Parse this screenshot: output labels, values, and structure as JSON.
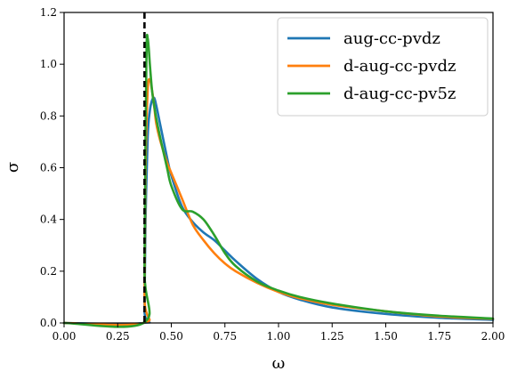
{
  "chart_data": {
    "type": "line",
    "title": "",
    "xlabel": "ω",
    "ylabel": "σ",
    "xlim": [
      0.0,
      2.0
    ],
    "ylim": [
      0.0,
      1.2
    ],
    "xticks": [
      "0.00",
      "0.25",
      "0.50",
      "0.75",
      "1.00",
      "1.25",
      "1.50",
      "1.75",
      "2.00"
    ],
    "yticks": [
      "0.0",
      "0.2",
      "0.4",
      "0.6",
      "0.8",
      "1.0",
      "1.2"
    ],
    "grid": false,
    "legend_position": "top-right",
    "threshold_line": {
      "x": 0.375,
      "style": "dashed",
      "color": "#000000"
    },
    "series": [
      {
        "name": "aug-cc-pvdz",
        "color": "#1f77b4",
        "x": [
          0.0,
          0.37,
          0.375,
          0.38,
          0.39,
          0.4,
          0.41,
          0.42,
          0.43,
          0.45,
          0.48,
          0.5,
          0.55,
          0.6,
          0.65,
          0.7,
          0.75,
          0.8,
          0.9,
          1.0,
          1.1,
          1.25,
          1.5,
          1.75,
          2.0
        ],
        "y": [
          0.0,
          0.0,
          0.05,
          0.4,
          0.72,
          0.82,
          0.86,
          0.87,
          0.84,
          0.76,
          0.64,
          0.57,
          0.45,
          0.39,
          0.35,
          0.32,
          0.28,
          0.24,
          0.17,
          0.12,
          0.09,
          0.06,
          0.035,
          0.02,
          0.012
        ]
      },
      {
        "name": "d-aug-cc-pvdz",
        "color": "#ff7f0e",
        "x": [
          0.0,
          0.37,
          0.375,
          0.38,
          0.39,
          0.4,
          0.41,
          0.42,
          0.43,
          0.45,
          0.48,
          0.5,
          0.55,
          0.6,
          0.65,
          0.7,
          0.75,
          0.8,
          0.9,
          1.0,
          1.1,
          1.25,
          1.5,
          1.75,
          2.0
        ],
        "y": [
          0.0,
          0.0,
          0.1,
          0.6,
          0.9,
          0.94,
          0.9,
          0.84,
          0.77,
          0.7,
          0.62,
          0.58,
          0.48,
          0.38,
          0.32,
          0.27,
          0.23,
          0.2,
          0.155,
          0.12,
          0.095,
          0.07,
          0.045,
          0.025,
          0.016
        ]
      },
      {
        "name": "d-aug-cc-pv5z",
        "color": "#2ca02c",
        "x": [
          0.0,
          0.37,
          0.375,
          0.38,
          0.385,
          0.39,
          0.395,
          0.4,
          0.41,
          0.42,
          0.43,
          0.45,
          0.48,
          0.5,
          0.55,
          0.6,
          0.65,
          0.7,
          0.75,
          0.8,
          0.9,
          1.0,
          1.1,
          1.25,
          1.5,
          1.75,
          2.0
        ],
        "y": [
          0.0,
          0.0,
          0.2,
          0.75,
          1.08,
          1.1,
          1.06,
          1.0,
          0.9,
          0.84,
          0.79,
          0.71,
          0.6,
          0.53,
          0.44,
          0.43,
          0.4,
          0.34,
          0.27,
          0.22,
          0.16,
          0.125,
          0.1,
          0.075,
          0.045,
          0.028,
          0.017
        ]
      }
    ]
  }
}
